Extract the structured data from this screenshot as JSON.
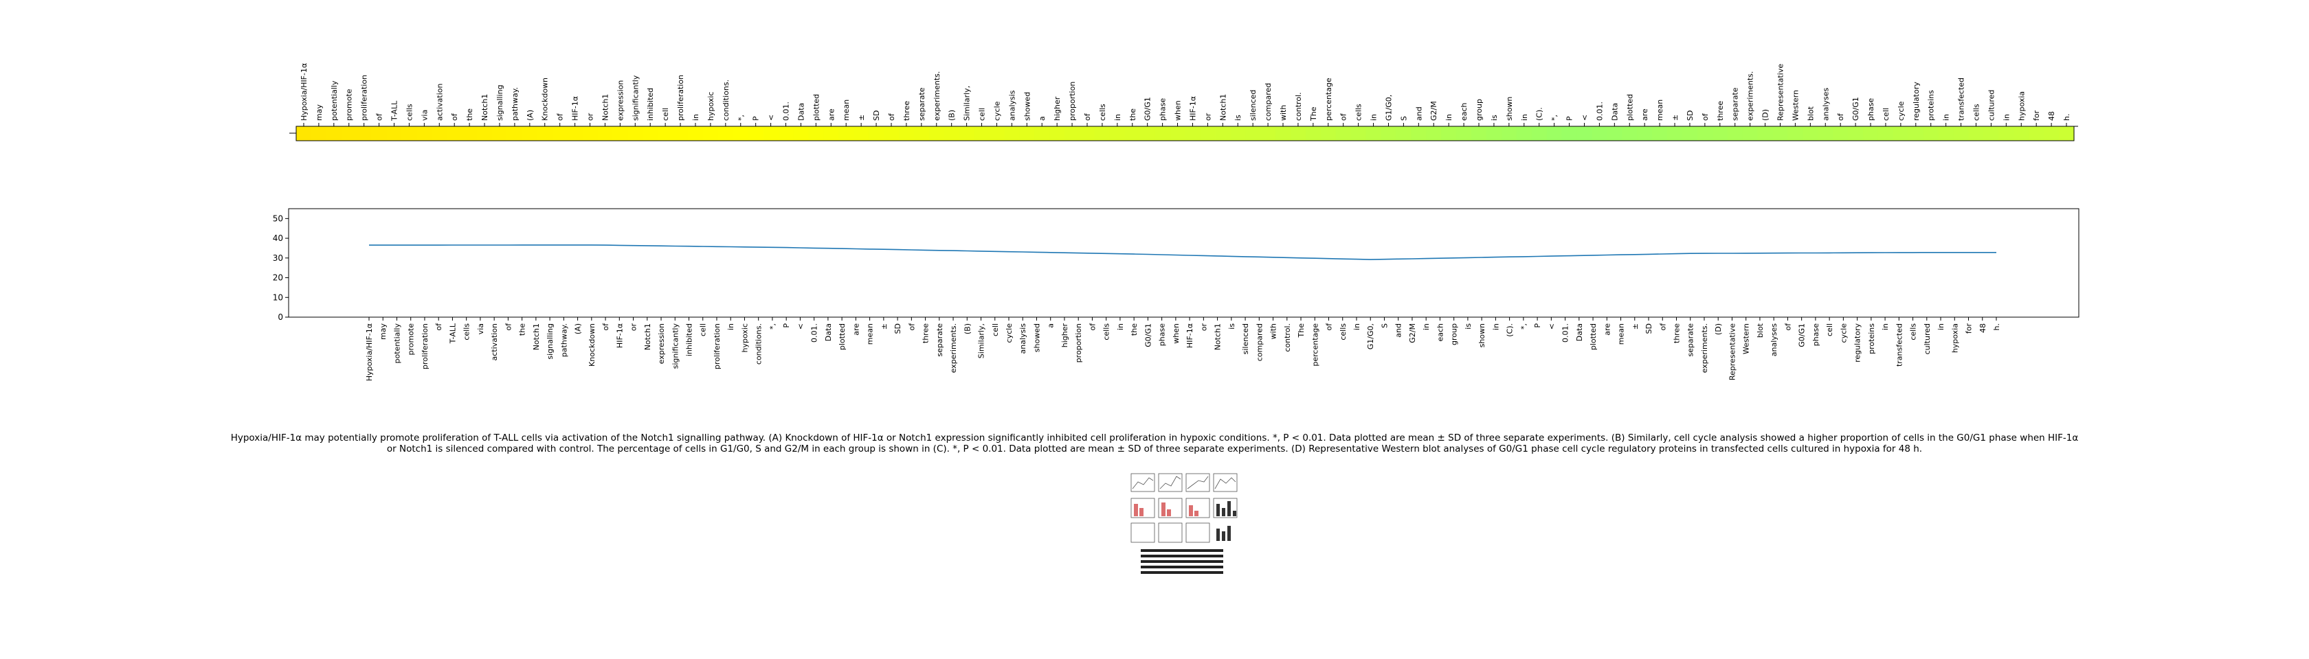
{
  "chart_data": [
    {
      "type": "heatmap",
      "tokens": [
        "Hypoxia/HIF-1α",
        "may",
        "potentially",
        "promote",
        "proliferation",
        "of",
        "T-ALL",
        "cells",
        "via",
        "activation",
        "of",
        "the",
        "Notch1",
        "signalling",
        "pathway.",
        "(A)",
        "Knockdown",
        "of",
        "HIF-1α",
        "or",
        "Notch1",
        "expression",
        "significantly",
        "inhibited",
        "cell",
        "proliferation",
        "in",
        "hypoxic",
        "conditions.",
        "*,",
        "P",
        "<",
        "0.01.",
        "Data",
        "plotted",
        "are",
        "mean",
        "±",
        "SD",
        "of",
        "three",
        "separate",
        "experiments.",
        "(B)",
        "Similarly,",
        "cell",
        "cycle",
        "analysis",
        "showed",
        "a",
        "higher",
        "proportion",
        "of",
        "cells",
        "in",
        "the",
        "G0/G1",
        "phase",
        "when",
        "HIF-1α",
        "or",
        "Notch1",
        "is",
        "silenced",
        "compared",
        "with",
        "control.",
        "The",
        "percentage",
        "of",
        "cells",
        "in",
        "G1/G0,",
        "S",
        "and",
        "G2/M",
        "in",
        "each",
        "group",
        "is",
        "shown",
        "in",
        "(C).",
        "*,",
        "P",
        "<",
        "0.01.",
        "Data",
        "plotted",
        "are",
        "mean",
        "±",
        "SD",
        "of",
        "three",
        "separate",
        "experiments.",
        "(D)",
        "Representative",
        "Western",
        "blot",
        "analyses",
        "of",
        "G0/G1",
        "phase",
        "cell",
        "cycle",
        "regulatory",
        "proteins",
        "in",
        "transfected",
        "cells",
        "cultured",
        "in",
        "hypoxia",
        "for",
        "48",
        "h."
      ],
      "color_stops": [
        "#ffe600",
        "#ffff00",
        "#ccff33",
        "#99ff66",
        "#ccff33"
      ],
      "color_stop_positions": [
        0,
        0.25,
        0.55,
        0.72,
        1
      ]
    },
    {
      "type": "line",
      "x": [
        "Hypoxia/HIF-1α",
        "may",
        "potentially",
        "promote",
        "proliferation",
        "of",
        "T-ALL",
        "cells",
        "via",
        "activation",
        "of",
        "the",
        "Notch1",
        "signalling",
        "pathway.",
        "(A)",
        "Knockdown",
        "of",
        "HIF-1α",
        "or",
        "Notch1",
        "expression",
        "significantly",
        "inhibited",
        "cell",
        "proliferation",
        "in",
        "hypoxic",
        "conditions.",
        "*,",
        "P",
        "<",
        "0.01.",
        "Data",
        "plotted",
        "are",
        "mean",
        "±",
        "SD",
        "of",
        "three",
        "separate",
        "experiments.",
        "(B)",
        "Similarly,",
        "cell",
        "cycle",
        "analysis",
        "showed",
        "a",
        "higher",
        "proportion",
        "of",
        "cells",
        "in",
        "the",
        "G0/G1",
        "phase",
        "when",
        "HIF-1α",
        "or",
        "Notch1",
        "is",
        "silenced",
        "compared",
        "with",
        "control.",
        "The",
        "percentage",
        "of",
        "cells",
        "in",
        "G1/G0,",
        "S",
        "and",
        "G2/M",
        "in",
        "each",
        "group",
        "is",
        "shown",
        "in",
        "(C).",
        "*,",
        "P",
        "<",
        "0.01.",
        "Data",
        "plotted",
        "are",
        "mean",
        "±",
        "SD",
        "of",
        "three",
        "separate",
        "experiments.",
        "(D)",
        "Representative",
        "Western",
        "blot",
        "analyses",
        "of",
        "G0/G1",
        "phase",
        "cell",
        "cycle",
        "regulatory",
        "proteins",
        "in",
        "transfected",
        "cells",
        "cultured",
        "in",
        "hypoxia",
        "for",
        "48",
        "h."
      ],
      "y_keypoints": [
        [
          0,
          36.5
        ],
        [
          16,
          36.6
        ],
        [
          30,
          35.3
        ],
        [
          55,
          32.0
        ],
        [
          72,
          29.2
        ],
        [
          95,
          32.3
        ],
        [
          112,
          32.8
        ]
      ],
      "ylim": [
        0,
        55
      ],
      "yticks": [
        0,
        10,
        20,
        30,
        40,
        50
      ],
      "line_color": "#1f77b4"
    }
  ],
  "caption": {
    "line1": "Hypoxia/HIF-1α may potentially promote proliferation of T-ALL cells via activation of the Notch1 signalling pathway. (A) Knockdown of HIF-1α or Notch1 expression significantly inhibited cell proliferation in hypoxic conditions. *, P < 0.01. Data plotted are mean ± SD of three separate experiments. (B) Similarly, cell cycle analysis showed a higher proportion of cells in the G0/G1 phase when HIF-1α",
    "line2": "or Notch1 is silenced compared with control. The percentage of cells in G1/G0, S and G2/M in each group is shown in (C). *, P < 0.01. Data plotted are mean ± SD of three separate experiments. (D) Representative Western blot analyses of G0/G1 phase cell cycle regulatory proteins in transfected cells cultured in hypoxia for 48 h."
  }
}
